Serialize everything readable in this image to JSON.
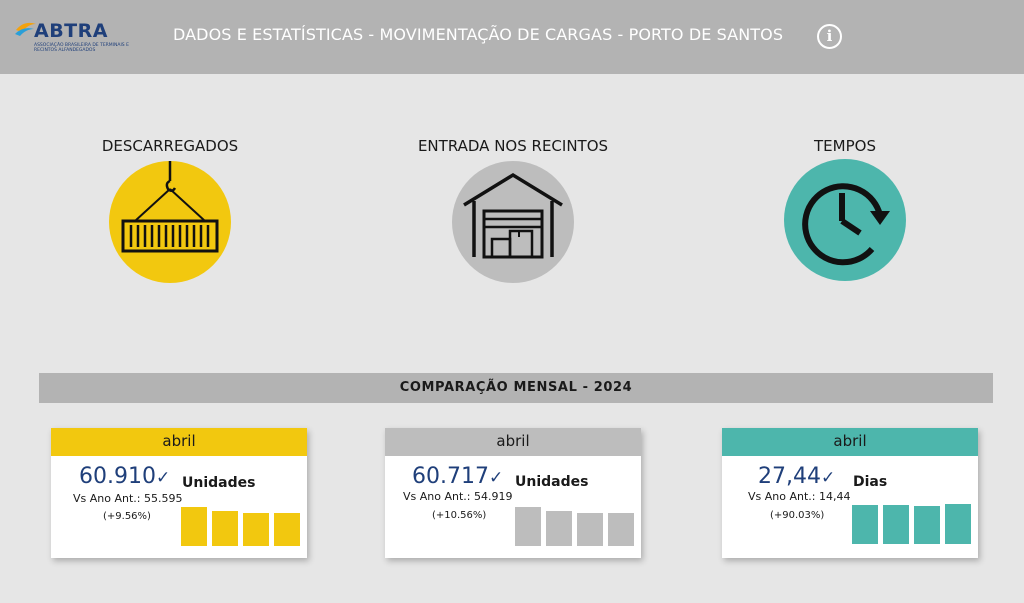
{
  "header": {
    "logo_text": "ABTRA",
    "logo_subtitle": "ASSOCIAÇÃO BRASILEIRA DE TERMINAIS E RECINTOS ALFANDEGADOS",
    "title": "DADOS E ESTATÍSTICAS - MOVIMENTAÇÃO DE CARGAS - PORTO DE SANTOS",
    "info_icon": "i"
  },
  "categories": [
    {
      "label": "DESCARREGADOS",
      "icon": "container-crane-icon",
      "color": "#f2c80f"
    },
    {
      "label": "ENTRADA NOS RECINTOS",
      "icon": "warehouse-icon",
      "color": "#bdbdbd"
    },
    {
      "label": "TEMPOS",
      "icon": "clock-icon",
      "color": "#4db6ac"
    }
  ],
  "section": {
    "title": "COMPARAÇÃO MENSAL - 2024"
  },
  "cards": [
    {
      "month": "abril",
      "value": "60.910",
      "check": "✓",
      "vs_label": "Vs Ano Ant.: 55.595",
      "pct": "(+9.56%)",
      "unit": "Unidades",
      "color": "#f2c80f",
      "bar_levels": [
        0.97,
        0.88,
        0.83,
        0.83
      ]
    },
    {
      "month": "abril",
      "value": "60.717",
      "check": "✓",
      "vs_label": "Vs Ano Ant.: 54.919",
      "pct": "(+10.56%)",
      "unit": "Unidades",
      "color": "#bdbdbd",
      "bar_levels": [
        0.97,
        0.88,
        0.83,
        0.83
      ]
    },
    {
      "month": "abril",
      "value": "27,44",
      "check": "✓",
      "vs_label": "Vs Ano Ant.: 14,44",
      "pct": "(+90.03%)",
      "unit": "Dias",
      "color": "#4db6ac",
      "bar_levels": [
        0.97,
        0.97,
        0.95,
        1.0
      ]
    }
  ]
}
